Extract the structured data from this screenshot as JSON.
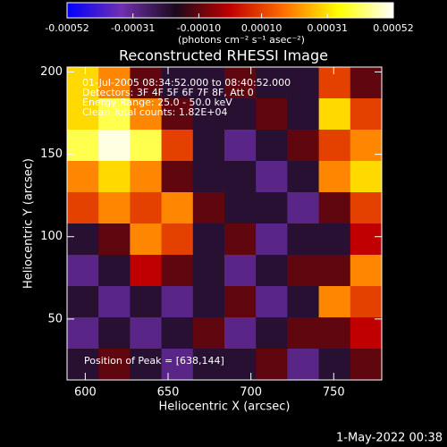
{
  "chart_data": {
    "type": "heatmap",
    "title": "Reconstructed RHESSI Image",
    "xlabel": "Heliocentric X (arcsec)",
    "ylabel": "Heliocentric Y (arcsec)",
    "colorbar_label": "(photons cm⁻² s⁻¹ asec⁻²)",
    "annotations": [
      "01-Jul-2005 08:34:52.000 to 08:40:52.000",
      "Detectors: 3F 4F 5F 6F 7F 8F, Att 0",
      "Energy Range: 25.0 - 50.0 keV",
      "Clean    Total counts: 1.82E+04"
    ],
    "peak_label": "Position of Peak = [638,144]",
    "timestamp": "1-May-2022 00:38",
    "xlim": [
      589,
      779
    ],
    "ylim": [
      13,
      203
    ],
    "xticks": [
      600,
      650,
      700,
      750
    ],
    "yticks": [
      50,
      100,
      150,
      200
    ],
    "xbins": [
      589,
      608,
      627,
      646,
      665,
      684,
      703,
      722,
      741,
      760,
      779
    ],
    "ybins": [
      203,
      184,
      165,
      146,
      127,
      108,
      89,
      70,
      51,
      32,
      13
    ],
    "zlim": [
      -0.00052,
      0.00052
    ],
    "zticks": [
      -0.00052,
      -0.00031,
      {
        "value": -0.0001,
        "label": "-0.00010"
      },
      {
        "value": 0.0001,
        "label": "0.00010"
      },
      0.00031,
      0.00052
    ],
    "colormap": [
      "#0000ff",
      "#7030b0",
      "#1a0a1a",
      "#c00000",
      "#ff7000",
      "#ffff00",
      "#ffffff"
    ],
    "z": [
      [
        0.0003,
        0.0002,
        -0.0001,
        -0.0002,
        -0.0002,
        -0.0001,
        -0.0002,
        -0.0002,
        0.0001,
        -0.0001
      ],
      [
        0.0003,
        0.0004,
        0.0002,
        -0.0001,
        -0.0002,
        -0.0002,
        -0.0001,
        -0.0002,
        0.0003,
        0.0001
      ],
      [
        0.0004,
        0.0005,
        0.0004,
        0.0001,
        -0.0002,
        -0.0003,
        -0.0002,
        -0.0001,
        0.0001,
        0.0002
      ],
      [
        0.0002,
        0.0003,
        0.0002,
        -0.0001,
        -0.0002,
        -0.0002,
        -0.0003,
        -0.0002,
        0.0002,
        0.0003
      ],
      [
        0.0001,
        0.0002,
        0.0001,
        0.0002,
        -0.0001,
        -0.0002,
        -0.0002,
        -0.0003,
        -0.0001,
        0.0001
      ],
      [
        -0.0002,
        -0.0001,
        0.0002,
        0.0001,
        -0.0002,
        -0.0001,
        -0.0003,
        -0.0002,
        -0.0002,
        0
      ],
      [
        -0.0003,
        -0.0002,
        0,
        -0.0001,
        -0.0002,
        -0.0003,
        -0.0002,
        -0.0001,
        -0.0001,
        0.0002
      ],
      [
        -0.0002,
        -0.0003,
        -0.0002,
        -0.0003,
        -0.0002,
        -0.0001,
        -0.0003,
        -0.0002,
        0.0002,
        0.0001
      ],
      [
        -0.0003,
        -0.0002,
        -0.0003,
        -0.0002,
        -0.0001,
        -0.0003,
        -0.0002,
        -0.0001,
        -0.0001,
        0
      ],
      [
        -0.0002,
        -0.0001,
        -0.0002,
        -0.0003,
        -0.0002,
        -0.0002,
        -0.0001,
        -0.0003,
        -0.0002,
        -0.0001
      ]
    ]
  }
}
